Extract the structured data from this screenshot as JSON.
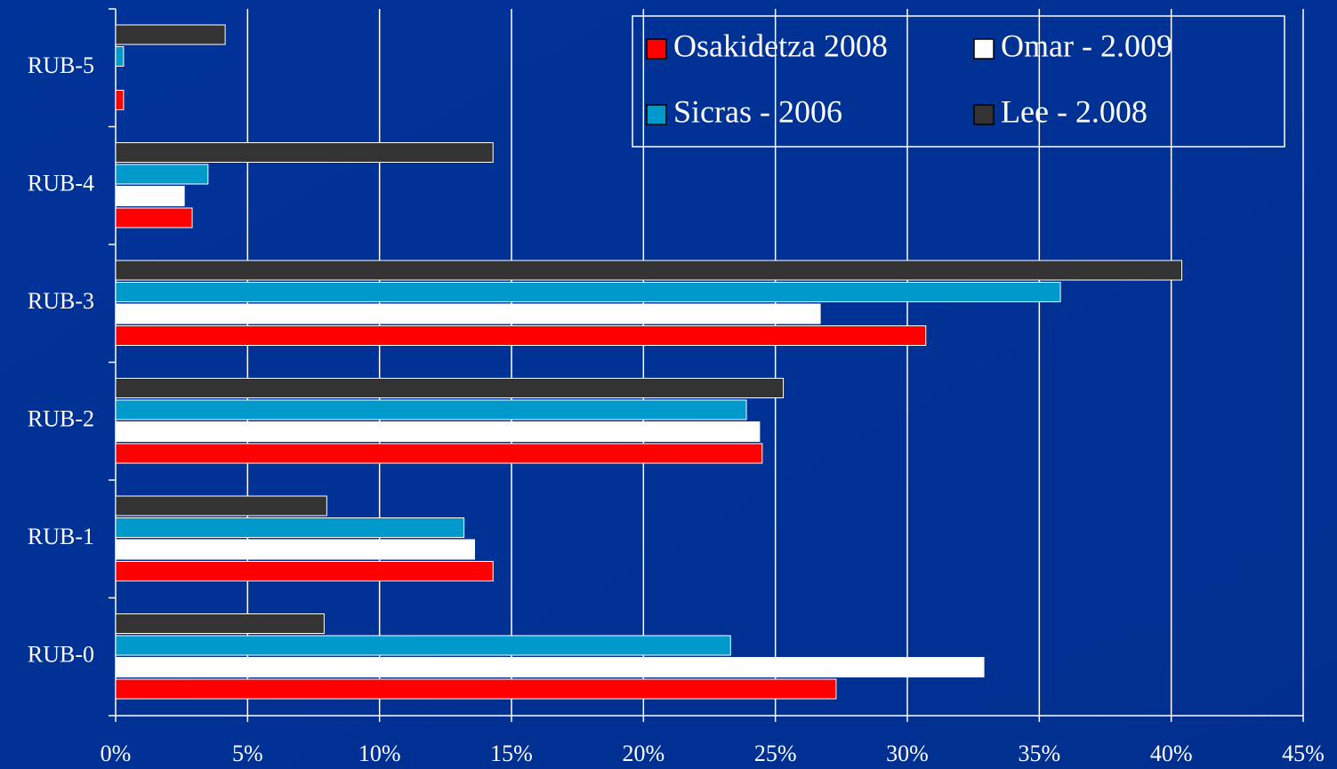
{
  "chart_data": {
    "type": "bar",
    "orientation": "horizontal",
    "categories": [
      "RUB-0",
      "RUB-1",
      "RUB-2",
      "RUB-3",
      "RUB-4",
      "RUB-5"
    ],
    "series": [
      {
        "name": "Osakidetza 2008",
        "color": "#ff0000",
        "values": [
          27.3,
          14.3,
          24.5,
          30.7,
          2.9,
          0.3
        ]
      },
      {
        "name": "Omar - 2.009",
        "color": "#ffffff",
        "values": [
          32.9,
          13.6,
          24.4,
          26.7,
          2.6,
          0
        ]
      },
      {
        "name": "Sicras - 2006",
        "color": "#0099cc",
        "values": [
          23.3,
          13.2,
          23.9,
          35.8,
          3.5,
          0.3
        ]
      },
      {
        "name": "Lee - 2.008",
        "color": "#333333",
        "values": [
          7.9,
          8.0,
          25.3,
          40.4,
          14.3,
          4.15
        ]
      }
    ],
    "xlim": [
      0,
      45
    ],
    "xticks": [
      {
        "value": 0,
        "label": "0%"
      },
      {
        "value": 5,
        "label": "5%"
      },
      {
        "value": 10,
        "label": "10%"
      },
      {
        "value": 15,
        "label": "15%"
      },
      {
        "value": 20,
        "label": "20%"
      },
      {
        "value": 25,
        "label": "25%"
      },
      {
        "value": 30,
        "label": "30%"
      },
      {
        "value": 35,
        "label": "35%"
      },
      {
        "value": 40,
        "label": "40%"
      },
      {
        "value": 45,
        "label": "45%"
      }
    ],
    "grid": true,
    "legend": "top-right"
  }
}
